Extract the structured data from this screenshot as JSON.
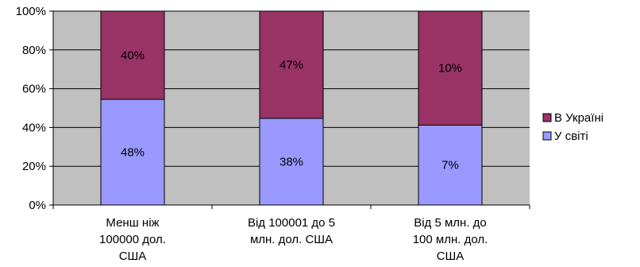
{
  "chart_data": {
    "type": "bar",
    "stacked": "percent",
    "categories": [
      [
        "Менш ніж",
        "100000 дол.",
        "США"
      ],
      [
        "Від 100001 до 5",
        "млн. дол. США"
      ],
      [
        "Від 5 млн. до",
        "100 млн. дол.",
        "США"
      ]
    ],
    "series": [
      {
        "name": "У світі",
        "color": "#9999ff",
        "labels": [
          "48%",
          "38%",
          "7%"
        ],
        "share": [
          54.5,
          44.7,
          41.2
        ]
      },
      {
        "name": "В Україні",
        "color": "#993366",
        "labels": [
          "40%",
          "47%",
          "10%"
        ],
        "share": [
          45.5,
          55.3,
          58.8
        ]
      }
    ],
    "yticks": [
      "0%",
      "20%",
      "40%",
      "60%",
      "80%",
      "100%"
    ],
    "ylim": [
      0,
      100
    ],
    "grid": true,
    "plot_background": "#c0c0c0",
    "legend": {
      "placement": "right",
      "order": [
        "В Україні",
        "У світі"
      ]
    }
  }
}
